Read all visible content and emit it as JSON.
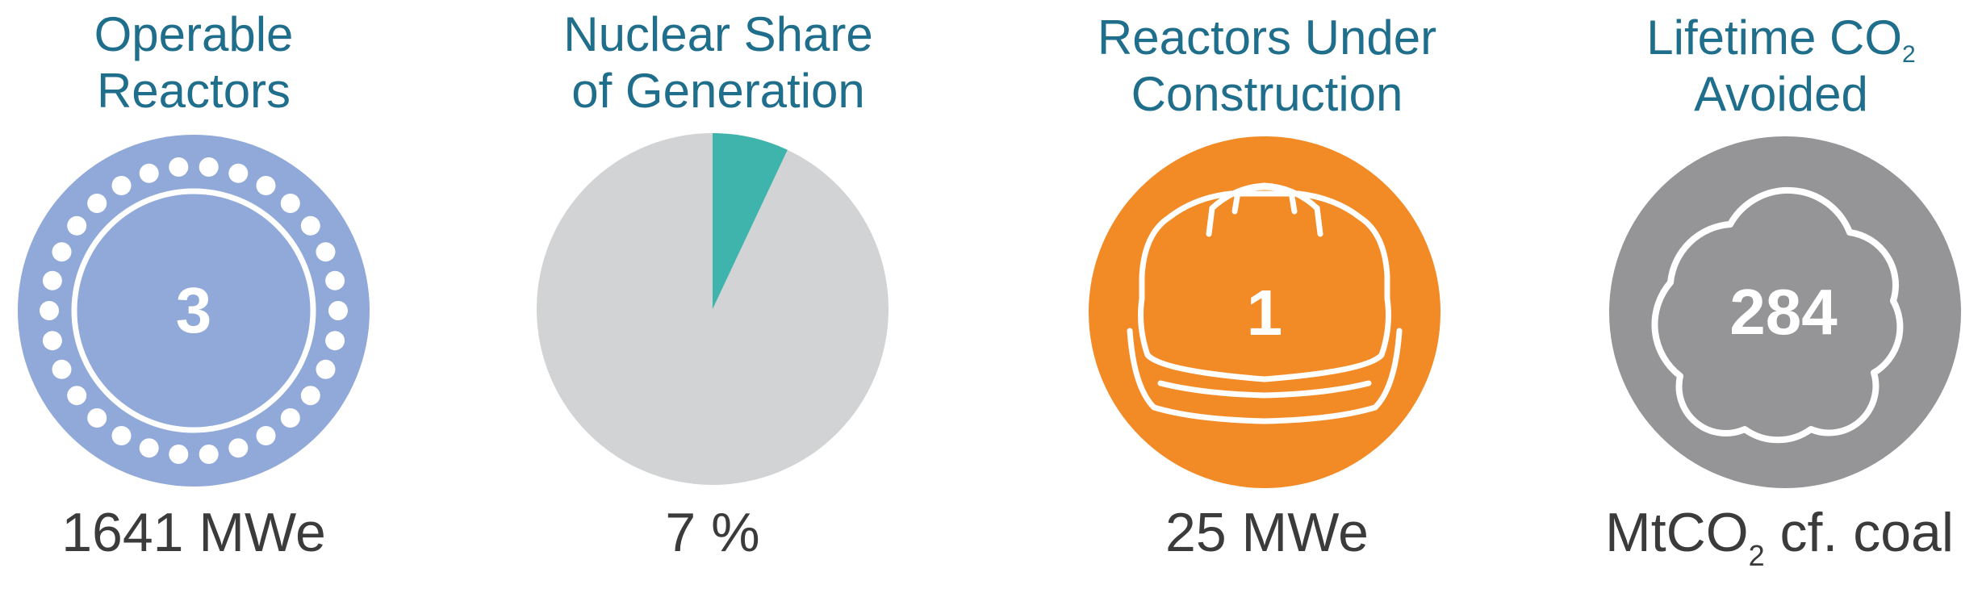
{
  "panels": {
    "operable_reactors": {
      "title_line1": "Operable",
      "title_line2": "Reactors",
      "value": "3",
      "caption": "1641 MWe",
      "color": "#91a9d9"
    },
    "nuclear_share": {
      "title_line1": "Nuclear Share",
      "title_line2": "of Generation",
      "share_percent": 7,
      "caption": "7 %",
      "slice_color": "#3eb4ad",
      "rest_color": "#d2d3d4"
    },
    "under_construction": {
      "title_line1": "Reactors Under",
      "title_line2": "Construction",
      "value": "1",
      "caption": "25 MWe",
      "color": "#f28a25",
      "icon": "hard-hat-icon"
    },
    "co2_avoided": {
      "title_line1": "Lifetime CO",
      "title_sub": "2",
      "title_line2": "Avoided",
      "value": "284",
      "caption_pre": "MtCO",
      "caption_sub": "2",
      "caption_post": " cf. coal",
      "color": "#959597",
      "icon": "cloud-icon"
    }
  },
  "title_color": "#1f6e8c",
  "caption_color": "#3b3b3b"
}
